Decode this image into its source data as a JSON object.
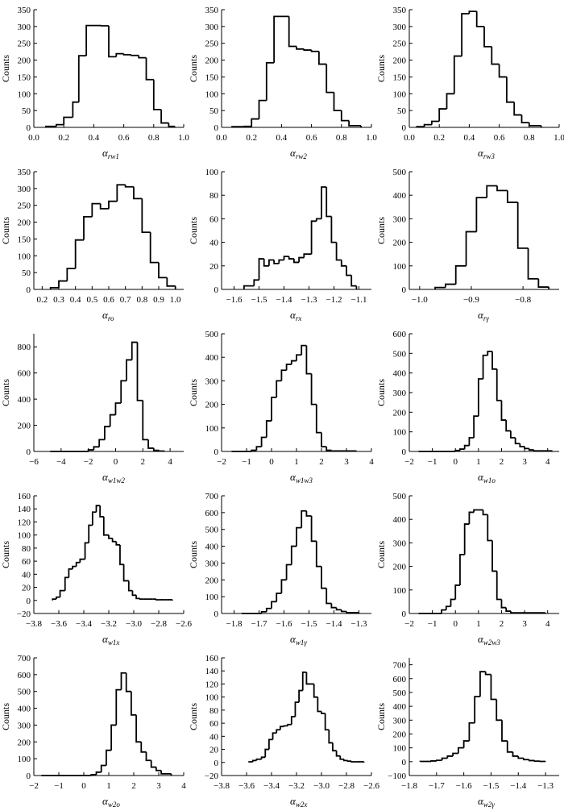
{
  "chart_data": [
    {
      "type": "histogram",
      "title": "",
      "xlabel": "α",
      "xlabel_sub": "rw1",
      "ylabel": "Counts",
      "xlim": [
        0,
        1
      ],
      "ylim": [
        0,
        350
      ],
      "xticks": [
        0,
        0.2,
        0.4,
        0.6,
        0.8,
        1
      ],
      "xtick_labels": [
        "0.0",
        "0.2",
        "0.4",
        "0.6",
        "0.8",
        "1.0"
      ],
      "yticks": [
        0,
        50,
        100,
        150,
        200,
        250,
        300,
        350
      ],
      "ytick_labels": [
        "0",
        "50",
        "100",
        "150",
        "200",
        "250",
        "300",
        "350"
      ],
      "bin_edges": [
        0.08,
        0.15,
        0.2,
        0.26,
        0.3,
        0.35,
        0.45,
        0.5,
        0.55,
        0.6,
        0.65,
        0.7,
        0.75,
        0.8,
        0.85,
        0.9,
        0.94
      ],
      "counts": [
        3,
        8,
        30,
        75,
        213,
        303,
        302,
        210,
        219,
        216,
        214,
        207,
        142,
        53,
        13,
        3
      ]
    },
    {
      "type": "histogram",
      "xlabel": "α",
      "xlabel_sub": "rw2",
      "ylabel": "Counts",
      "xlim": [
        0,
        1
      ],
      "ylim": [
        0,
        350
      ],
      "xticks": [
        0,
        0.2,
        0.4,
        0.6,
        0.8,
        1
      ],
      "xtick_labels": [
        "0.0",
        "0.2",
        "0.4",
        "0.6",
        "0.8",
        "1.0"
      ],
      "yticks": [
        0,
        50,
        100,
        150,
        200,
        250,
        300,
        350
      ],
      "ytick_labels": [
        "0",
        "50",
        "100",
        "150",
        "200",
        "250",
        "300",
        "350"
      ],
      "bin_edges": [
        0.07,
        0.15,
        0.2,
        0.25,
        0.3,
        0.35,
        0.45,
        0.5,
        0.55,
        0.6,
        0.65,
        0.7,
        0.75,
        0.8,
        0.85,
        0.93
      ],
      "counts": [
        2,
        3,
        25,
        80,
        192,
        330,
        241,
        233,
        230,
        226,
        188,
        104,
        50,
        20,
        5
      ]
    },
    {
      "type": "histogram",
      "xlabel": "α",
      "xlabel_sub": "rw3",
      "ylabel": "Counts",
      "xlim": [
        0,
        1
      ],
      "ylim": [
        0,
        350
      ],
      "xticks": [
        0,
        0.2,
        0.4,
        0.6,
        0.8,
        1
      ],
      "xtick_labels": [
        "0.0",
        "0.2",
        "0.4",
        "0.6",
        "0.8",
        "1.0"
      ],
      "yticks": [
        0,
        50,
        100,
        150,
        200,
        250,
        300,
        350
      ],
      "ytick_labels": [
        "0",
        "50",
        "100",
        "150",
        "200",
        "250",
        "300",
        "350"
      ],
      "bin_edges": [
        0.05,
        0.1,
        0.15,
        0.2,
        0.25,
        0.3,
        0.35,
        0.4,
        0.45,
        0.5,
        0.55,
        0.6,
        0.65,
        0.7,
        0.75,
        0.8,
        0.88
      ],
      "counts": [
        2,
        8,
        18,
        55,
        100,
        212,
        338,
        345,
        300,
        240,
        188,
        150,
        75,
        37,
        14,
        5
      ]
    },
    {
      "type": "histogram",
      "xlabel": "α",
      "xlabel_sub": "ro",
      "ylabel": "Counts",
      "xlim": [
        0.15,
        1.05
      ],
      "ylim": [
        0,
        350
      ],
      "xticks": [
        0.2,
        0.3,
        0.4,
        0.5,
        0.6,
        0.7,
        0.8,
        0.9,
        1
      ],
      "xtick_labels": [
        "0.2",
        "0.3",
        "0.4",
        "0.5",
        "0.6",
        "0.7",
        "0.8",
        "0.9",
        "1.0"
      ],
      "yticks": [
        0,
        50,
        100,
        150,
        200,
        250,
        300,
        350
      ],
      "ytick_labels": [
        "0",
        "50",
        "100",
        "150",
        "200",
        "250",
        "300",
        "350"
      ],
      "bin_edges": [
        0.25,
        0.3,
        0.35,
        0.4,
        0.45,
        0.5,
        0.55,
        0.6,
        0.65,
        0.7,
        0.75,
        0.8,
        0.85,
        0.9,
        0.95,
        1.0
      ],
      "counts": [
        5,
        25,
        62,
        147,
        216,
        255,
        240,
        262,
        311,
        305,
        270,
        170,
        80,
        35,
        10
      ]
    },
    {
      "type": "histogram",
      "xlabel": "α",
      "xlabel_sub": "rx",
      "ylabel": "Counts",
      "xlim": [
        -1.65,
        -1.05
      ],
      "ylim": [
        0,
        100
      ],
      "xticks": [
        -1.6,
        -1.5,
        -1.4,
        -1.3,
        -1.2,
        -1.1
      ],
      "xtick_labels": [
        "−1.6",
        "−1.5",
        "−1.4",
        "−1.3",
        "−1.2",
        "−1.1"
      ],
      "yticks": [
        0,
        20,
        40,
        60,
        80,
        100
      ],
      "ytick_labels": [
        "0",
        "20",
        "40",
        "60",
        "80",
        "100"
      ],
      "bin_edges": [
        -1.56,
        -1.52,
        -1.5,
        -1.48,
        -1.46,
        -1.44,
        -1.42,
        -1.4,
        -1.38,
        -1.36,
        -1.34,
        -1.32,
        -1.29,
        -1.27,
        -1.25,
        -1.23,
        -1.21,
        -1.19,
        -1.17,
        -1.15,
        -1.13,
        -1.11
      ],
      "counts": [
        3,
        8,
        26,
        20,
        25,
        22,
        25,
        28,
        26,
        23,
        27,
        30,
        58,
        60,
        87,
        62,
        40,
        25,
        20,
        12,
        3
      ]
    },
    {
      "type": "histogram",
      "xlabel": "α",
      "xlabel_sub": "rγ",
      "ylabel": "Counts",
      "xlim": [
        -1.02,
        -0.73
      ],
      "ylim": [
        0,
        500
      ],
      "xticks": [
        -1,
        -0.9,
        -0.8
      ],
      "xtick_labels": [
        "−1.0",
        "−0.9",
        "−0.8"
      ],
      "yticks": [
        0,
        100,
        200,
        300,
        400,
        500
      ],
      "ytick_labels": [
        "0",
        "100",
        "200",
        "300",
        "400",
        "500"
      ],
      "bin_edges": [
        -0.97,
        -0.95,
        -0.93,
        -0.91,
        -0.89,
        -0.87,
        -0.85,
        -0.83,
        -0.81,
        -0.79,
        -0.77,
        -0.75
      ],
      "counts": [
        8,
        22,
        100,
        245,
        390,
        440,
        420,
        370,
        175,
        45,
        10
      ]
    },
    {
      "type": "histogram",
      "xlabel": "α",
      "xlabel_sub": "w1w2",
      "ylabel": "Counts",
      "xlim": [
        -6,
        5
      ],
      "ylim": [
        0,
        900
      ],
      "xticks": [
        -6,
        -4,
        -2,
        0,
        2,
        4
      ],
      "xtick_labels": [
        "−6",
        "−4",
        "−2",
        "0",
        "2",
        "4"
      ],
      "yticks": [
        0,
        200,
        400,
        600,
        800
      ],
      "ytick_labels": [
        "0",
        "200",
        "400",
        "600",
        "800"
      ],
      "bin_edges": [
        -4.8,
        -2.0,
        -1.6,
        -1.2,
        -0.8,
        -0.4,
        0.0,
        0.4,
        0.8,
        1.2,
        1.6,
        2.0,
        2.4,
        2.8,
        3.2,
        3.6
      ],
      "counts": [
        0,
        12,
        35,
        90,
        190,
        280,
        370,
        540,
        700,
        835,
        390,
        90,
        25,
        8,
        3
      ]
    },
    {
      "type": "histogram",
      "xlabel": "α",
      "xlabel_sub": "w1w3",
      "ylabel": "Counts",
      "xlim": [
        -2,
        4
      ],
      "ylim": [
        0,
        500
      ],
      "xticks": [
        -2,
        -1,
        0,
        1,
        2,
        3,
        4
      ],
      "xtick_labels": [
        "−2",
        "−1",
        "0",
        "1",
        "2",
        "3",
        "4"
      ],
      "yticks": [
        0,
        100,
        200,
        300,
        400,
        500
      ],
      "ytick_labels": [
        "0",
        "100",
        "200",
        "300",
        "400",
        "500"
      ],
      "bin_edges": [
        -1.6,
        -0.8,
        -0.6,
        -0.4,
        -0.2,
        0.0,
        0.2,
        0.4,
        0.6,
        0.8,
        1.0,
        1.2,
        1.4,
        1.6,
        1.8,
        2.0,
        2.2,
        2.4,
        3.4
      ],
      "counts": [
        0,
        5,
        20,
        60,
        130,
        230,
        300,
        345,
        370,
        385,
        410,
        450,
        330,
        200,
        80,
        20,
        5,
        2
      ]
    },
    {
      "type": "histogram",
      "xlabel": "α",
      "xlabel_sub": "w1o",
      "ylabel": "Counts",
      "xlim": [
        -2,
        4.5
      ],
      "ylim": [
        0,
        600
      ],
      "xticks": [
        -2,
        -1,
        0,
        1,
        2,
        3,
        4
      ],
      "xtick_labels": [
        "−2",
        "−1",
        "0",
        "1",
        "2",
        "3",
        "4"
      ],
      "yticks": [
        0,
        100,
        200,
        300,
        400,
        500,
        600
      ],
      "ytick_labels": [
        "0",
        "100",
        "200",
        "300",
        "400",
        "500",
        "600"
      ],
      "bin_edges": [
        -1.6,
        0.0,
        0.2,
        0.4,
        0.6,
        0.8,
        1.0,
        1.2,
        1.4,
        1.6,
        1.8,
        2.0,
        2.2,
        2.4,
        2.6,
        2.8,
        3.0,
        3.2,
        3.4,
        4.2
      ],
      "counts": [
        0,
        5,
        12,
        30,
        70,
        180,
        370,
        490,
        510,
        420,
        260,
        160,
        105,
        70,
        40,
        25,
        15,
        8,
        3
      ]
    },
    {
      "type": "histogram",
      "xlabel": "α",
      "xlabel_sub": "w1x",
      "ylabel": "Counts",
      "xlim": [
        -3.8,
        -2.6
      ],
      "ylim": [
        -20,
        160
      ],
      "xticks": [
        -3.8,
        -3.6,
        -3.4,
        -3.2,
        -3,
        -2.8,
        -2.6
      ],
      "xtick_labels": [
        "−3.8",
        "−3.6",
        "−3.4",
        "−3.2",
        "−3.0",
        "−2.8",
        "−2.6"
      ],
      "yticks": [
        -20,
        0,
        20,
        40,
        60,
        80,
        100,
        120,
        140,
        160
      ],
      "ytick_labels": [
        "−20",
        "0",
        "20",
        "40",
        "60",
        "80",
        "100",
        "120",
        "140",
        "160"
      ],
      "bin_edges": [
        -3.65,
        -3.62,
        -3.59,
        -3.55,
        -3.52,
        -3.49,
        -3.46,
        -3.43,
        -3.39,
        -3.36,
        -3.33,
        -3.3,
        -3.27,
        -3.24,
        -3.2,
        -3.17,
        -3.14,
        -3.11,
        -3.08,
        -3.04,
        -3.01,
        -2.98,
        -2.95,
        -2.92,
        -2.89,
        -2.85,
        -2.82,
        -2.79,
        -2.76,
        -2.73,
        -2.69
      ],
      "counts": [
        2,
        5,
        15,
        35,
        48,
        52,
        58,
        63,
        88,
        115,
        135,
        145,
        128,
        100,
        95,
        90,
        85,
        55,
        30,
        15,
        8,
        3,
        2,
        2,
        2,
        2,
        1,
        1,
        1,
        1
      ]
    },
    {
      "type": "histogram",
      "xlabel": "α",
      "xlabel_sub": "w1γ",
      "ylabel": "Counts",
      "xlim": [
        -1.85,
        -1.25
      ],
      "ylim": [
        0,
        700
      ],
      "xticks": [
        -1.8,
        -1.7,
        -1.6,
        -1.5,
        -1.4,
        -1.3
      ],
      "xtick_labels": [
        "−1.8",
        "−1.7",
        "−1.6",
        "−1.5",
        "−1.4",
        "−1.3"
      ],
      "yticks": [
        0,
        100,
        200,
        300,
        400,
        500,
        600,
        700
      ],
      "ytick_labels": [
        "0",
        "100",
        "200",
        "300",
        "400",
        "500",
        "600",
        "700"
      ],
      "bin_edges": [
        -1.77,
        -1.69,
        -1.67,
        -1.65,
        -1.63,
        -1.61,
        -1.59,
        -1.57,
        -1.55,
        -1.53,
        -1.51,
        -1.49,
        -1.47,
        -1.45,
        -1.43,
        -1.41,
        -1.39,
        -1.37,
        -1.35,
        -1.3
      ],
      "counts": [
        0,
        10,
        30,
        70,
        120,
        200,
        290,
        400,
        510,
        610,
        580,
        430,
        280,
        150,
        60,
        35,
        22,
        12,
        5
      ]
    },
    {
      "type": "histogram",
      "xlabel": "α",
      "xlabel_sub": "w2w3",
      "ylabel": "Counts",
      "xlim": [
        -2,
        4.5
      ],
      "ylim": [
        0,
        500
      ],
      "xticks": [
        -2,
        -1,
        0,
        1,
        2,
        3,
        4
      ],
      "xtick_labels": [
        "−2",
        "−1",
        "0",
        "1",
        "2",
        "3",
        "4"
      ],
      "yticks": [
        0,
        100,
        200,
        300,
        400,
        500
      ],
      "ytick_labels": [
        "0",
        "100",
        "200",
        "300",
        "400",
        "500"
      ],
      "bin_edges": [
        -1.6,
        -0.6,
        -0.4,
        -0.2,
        0.0,
        0.2,
        0.4,
        0.6,
        0.8,
        1.0,
        1.2,
        1.4,
        1.6,
        1.8,
        2.0,
        2.2,
        2.4,
        3.9
      ],
      "counts": [
        0,
        15,
        30,
        60,
        120,
        250,
        380,
        430,
        440,
        440,
        420,
        310,
        180,
        60,
        25,
        10,
        3
      ]
    },
    {
      "type": "histogram",
      "xlabel": "α",
      "xlabel_sub": "w2o",
      "ylabel": "Counts",
      "xlim": [
        -2,
        4
      ],
      "ylim": [
        0,
        700
      ],
      "xticks": [
        -2,
        -1,
        0,
        1,
        2,
        3,
        4
      ],
      "xtick_labels": [
        "−2",
        "−1",
        "0",
        "1",
        "2",
        "3",
        "4"
      ],
      "yticks": [
        0,
        100,
        200,
        300,
        400,
        500,
        600,
        700
      ],
      "ytick_labels": [
        "0",
        "100",
        "200",
        "300",
        "400",
        "500",
        "600",
        "700"
      ],
      "bin_edges": [
        -1.7,
        0.3,
        0.5,
        0.7,
        0.9,
        1.1,
        1.3,
        1.5,
        1.7,
        1.9,
        2.1,
        2.3,
        2.5,
        2.7,
        2.9,
        3.1,
        3.5
      ],
      "counts": [
        0,
        5,
        20,
        60,
        150,
        300,
        510,
        610,
        500,
        360,
        200,
        140,
        90,
        50,
        30,
        10
      ]
    },
    {
      "type": "histogram",
      "xlabel": "α",
      "xlabel_sub": "w2x",
      "ylabel": "Counts",
      "xlim": [
        -3.8,
        -2.6
      ],
      "ylim": [
        -20,
        160
      ],
      "xticks": [
        -3.8,
        -3.6,
        -3.4,
        -3.2,
        -3,
        -2.8,
        -2.6
      ],
      "xtick_labels": [
        "−3.8",
        "−3.6",
        "−3.4",
        "−3.2",
        "−3.0",
        "−2.8",
        "−2.6"
      ],
      "yticks": [
        -20,
        0,
        20,
        40,
        60,
        80,
        100,
        120,
        140,
        160
      ],
      "ytick_labels": [
        "−20",
        "0",
        "20",
        "40",
        "60",
        "80",
        "100",
        "120",
        "140",
        "160"
      ],
      "bin_edges": [
        -3.58,
        -3.55,
        -3.52,
        -3.48,
        -3.45,
        -3.42,
        -3.39,
        -3.36,
        -3.33,
        -3.3,
        -3.27,
        -3.24,
        -3.21,
        -3.18,
        -3.15,
        -3.12,
        -3.09,
        -3.06,
        -3.03,
        -3.0,
        -2.97,
        -2.94,
        -2.91,
        -2.88,
        -2.85,
        -2.82,
        -2.79,
        -2.76,
        -2.72,
        -2.69,
        -2.66
      ],
      "counts": [
        1,
        3,
        5,
        8,
        20,
        35,
        45,
        50,
        55,
        56,
        58,
        70,
        92,
        110,
        138,
        120,
        120,
        100,
        78,
        75,
        50,
        30,
        18,
        10,
        5,
        3,
        2,
        1,
        1,
        1
      ]
    },
    {
      "type": "histogram",
      "xlabel": "α",
      "xlabel_sub": "w2γ",
      "ylabel": "Counts",
      "xlim": [
        -1.8,
        -1.25
      ],
      "ylim": [
        -100,
        750
      ],
      "xticks": [
        -1.8,
        -1.7,
        -1.6,
        -1.5,
        -1.4,
        -1.3
      ],
      "xtick_labels": [
        "−1.8",
        "−1.7",
        "−1.6",
        "−1.5",
        "−1.4",
        "−1.3"
      ],
      "yticks": [
        -100,
        0,
        100,
        200,
        300,
        400,
        500,
        600,
        700
      ],
      "ytick_labels": [
        "−100",
        "0",
        "100",
        "200",
        "300",
        "400",
        "500",
        "600",
        "700"
      ],
      "bin_edges": [
        -1.76,
        -1.72,
        -1.7,
        -1.68,
        -1.66,
        -1.64,
        -1.62,
        -1.6,
        -1.58,
        -1.56,
        -1.54,
        -1.52,
        -1.5,
        -1.48,
        -1.46,
        -1.44,
        -1.42,
        -1.4,
        -1.38,
        -1.36,
        -1.34,
        -1.32,
        -1.3
      ],
      "counts": [
        2,
        5,
        10,
        25,
        40,
        60,
        100,
        150,
        280,
        470,
        650,
        630,
        450,
        300,
        150,
        70,
        40,
        25,
        15,
        8,
        4,
        2
      ]
    }
  ]
}
